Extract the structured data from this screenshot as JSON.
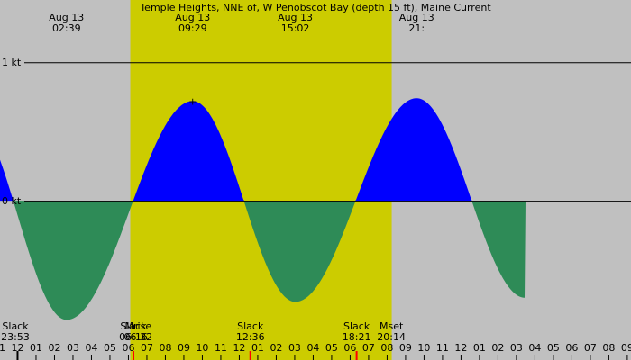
{
  "chart_data": {
    "type": "area",
    "title": "Temple Heights, NNE of, W Penobscot Bay (depth 15 ft), Maine Current",
    "units": "kt",
    "ylim": [
      -1.15,
      1.45
    ],
    "y_ticks": [
      {
        "value": 1,
        "label": "1 kt"
      },
      {
        "value": 0,
        "label": "0 kt"
      }
    ],
    "x_range_hours": [
      -0.95,
      33.2
    ],
    "daylight": {
      "start_hour": 6.1,
      "end_hour": 20.25
    },
    "colors": {
      "night": "#c0c0c0",
      "day": "#cccc00",
      "flood": "#0000ff",
      "ebb": "#2e8b57",
      "line": "#000000"
    },
    "extrema_hours": [
      -2.6,
      2.65,
      9.48,
      15.03,
      21.6,
      27.45
    ],
    "extrema_values": [
      0.63,
      -0.86,
      0.72,
      -0.73,
      0.74,
      -0.7
    ],
    "peak_labels": [
      {
        "hour": 2.65,
        "date": "Aug 13",
        "time": "02:39"
      },
      {
        "hour": 9.48,
        "date": "Aug 13",
        "time": "09:29"
      },
      {
        "hour": 15.03,
        "date": "Aug 13",
        "time": "15:02"
      },
      {
        "hour": 21.6,
        "date": "Aug 13",
        "time": "21:"
      }
    ],
    "events": [
      {
        "hour": -0.12,
        "name": "Slack",
        "time": "23:53"
      },
      {
        "hour": 6.27,
        "name": "Slack",
        "time": "06:16"
      },
      {
        "hour": 6.53,
        "name": "Mrise",
        "time": "06:32"
      },
      {
        "hour": 12.6,
        "name": "Slack",
        "time": "12:36"
      },
      {
        "hour": 18.35,
        "name": "Slack",
        "time": "18:21"
      },
      {
        "hour": 20.23,
        "name": "Mset",
        "time": "20:14"
      }
    ],
    "x_tick_hours": [
      -1,
      0,
      1,
      2,
      3,
      4,
      5,
      6,
      7,
      8,
      9,
      10,
      11,
      12,
      13,
      14,
      15,
      16,
      17,
      18,
      19,
      20,
      21,
      22,
      23,
      24,
      25,
      26,
      27,
      28,
      29,
      30,
      31,
      32,
      33
    ],
    "x_tick_labels": [
      "11",
      "12",
      "01",
      "02",
      "03",
      "04",
      "05",
      "06",
      "07",
      "08",
      "09",
      "10",
      "11",
      "12",
      "01",
      "02",
      "03",
      "04",
      "05",
      "06",
      "07",
      "08",
      "09",
      "10",
      "11",
      "12",
      "01",
      "02",
      "03",
      "04",
      "05",
      "06",
      "07",
      "08",
      "09"
    ],
    "markers": [
      {
        "hour": 0,
        "color": "#000000"
      },
      {
        "hour": 6.27,
        "color": "#ff0000"
      },
      {
        "hour": 12.6,
        "color": "#ff0000"
      },
      {
        "hour": 18.35,
        "color": "#ff0000"
      }
    ],
    "max_marker": {
      "hour": 9.48,
      "symbol": "+"
    }
  }
}
